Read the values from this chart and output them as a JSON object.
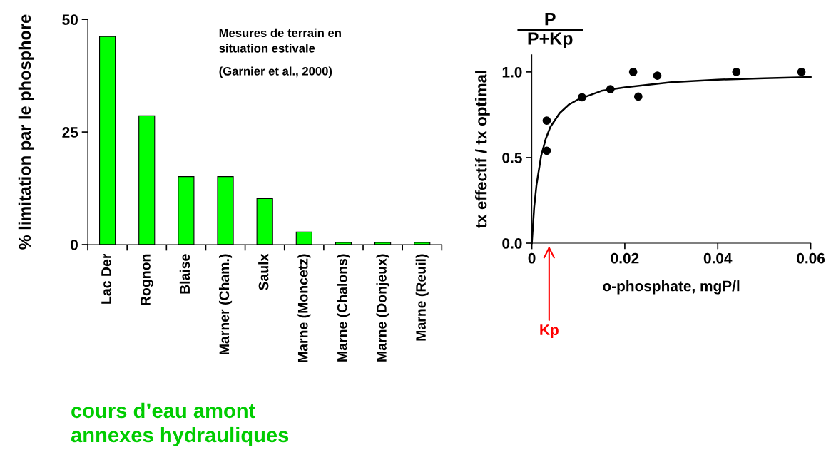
{
  "chart_data": [
    {
      "type": "bar",
      "ylabel": "% limitation par le phosphore",
      "categories": [
        "Lac Der",
        "Rognon",
        "Blaise",
        "Marner (Cham.)",
        "Saulx",
        "Marne (Moncetz)",
        "Marne (Chalons)",
        "Marne (Donjeux)",
        "Marne (Reuil)"
      ],
      "values": [
        46.2,
        28.6,
        15.1,
        15.1,
        10.2,
        2.8,
        0.5,
        0.5,
        0.5
      ],
      "color": "#00ff00",
      "ylim": [
        0,
        50
      ],
      "yticks": [
        0,
        25,
        50
      ],
      "grid": false,
      "annotations": [
        "Mesures de terrain en\nsituation estivale",
        "(Garnier et al., 2000)",
        "cours d’eau amont",
        "annexes hydrauliques"
      ]
    },
    {
      "type": "scatter",
      "xlabel": "o-phosphate, mgP/l",
      "ylabel": "tx effectif / tx optimal",
      "xlim": [
        0,
        0.06
      ],
      "xticks": [
        0,
        0.02,
        0.04,
        0.06
      ],
      "ylim": [
        0,
        1.1
      ],
      "yticks": [
        {
          "value": 0,
          "label": "0.0"
        },
        0.5,
        {
          "value": 1,
          "label": "1.0"
        }
      ],
      "grid": false,
      "series": [
        {
          "type": "scatter",
          "color": "#000000",
          "marker": "circle",
          "x": [
            0.0032,
            0.0032,
            0.0108,
            0.0169,
            0.0218,
            0.0229,
            0.027,
            0.044,
            0.058
          ],
          "values": [
            0.716,
            0.54,
            0.852,
            0.899,
            1.0,
            0.856,
            0.978,
            1.0,
            1.0
          ]
        },
        {
          "type": "line",
          "color": "#000000",
          "line_style": "solid",
          "x": [
            0,
            0.0005,
            0.001,
            0.002,
            0.003,
            0.004,
            0.006,
            0.008,
            0.01,
            0.015,
            0.02,
            0.03,
            0.04,
            0.05,
            0.06
          ],
          "values": [
            0,
            0.21,
            0.34,
            0.51,
            0.61,
            0.68,
            0.76,
            0.81,
            0.84,
            0.89,
            0.91,
            0.94,
            0.955,
            0.963,
            0.97
          ]
        }
      ],
      "annotations": [
        "P",
        "P+Kp",
        "Kp"
      ]
    }
  ]
}
